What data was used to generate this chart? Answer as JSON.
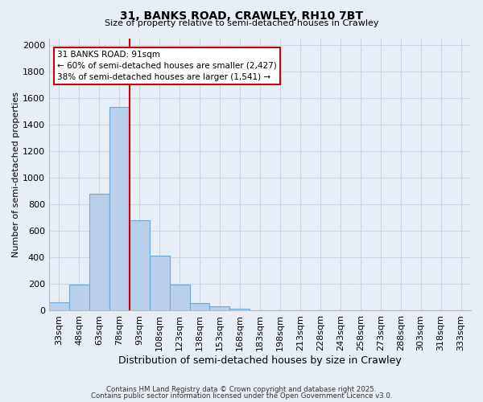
{
  "title": "31, BANKS ROAD, CRAWLEY, RH10 7BT",
  "subtitle": "Size of property relative to semi-detached houses in Crawley",
  "xlabel": "Distribution of semi-detached houses by size in Crawley",
  "ylabel": "Number of semi-detached properties",
  "bar_labels": [
    "33sqm",
    "48sqm",
    "63sqm",
    "78sqm",
    "93sqm",
    "108sqm",
    "123sqm",
    "138sqm",
    "153sqm",
    "168sqm",
    "183sqm",
    "198sqm",
    "213sqm",
    "228sqm",
    "243sqm",
    "258sqm",
    "273sqm",
    "288sqm",
    "303sqm",
    "318sqm",
    "333sqm"
  ],
  "bar_values": [
    65,
    195,
    880,
    1530,
    680,
    415,
    195,
    55,
    30,
    15,
    5,
    0,
    0,
    0,
    0,
    0,
    0,
    0,
    0,
    0,
    0
  ],
  "bar_color": "#b8d0eb",
  "bar_edge_color": "#6aaad4",
  "property_line_label": "31 BANKS ROAD: 91sqm",
  "annotation_line1": "← 60% of semi-detached houses are smaller (2,427)",
  "annotation_line2": "38% of semi-detached houses are larger (1,541) →",
  "annotation_box_color": "#cc0000",
  "line_x_index": 3.5,
  "ylim": [
    0,
    2050
  ],
  "yticks": [
    0,
    200,
    400,
    600,
    800,
    1000,
    1200,
    1400,
    1600,
    1800,
    2000
  ],
  "grid_color": "#c8d8e8",
  "background_color": "#e8eef5",
  "footer_line1": "Contains HM Land Registry data © Crown copyright and database right 2025.",
  "footer_line2": "Contains public sector information licensed under the Open Government Licence v3.0."
}
